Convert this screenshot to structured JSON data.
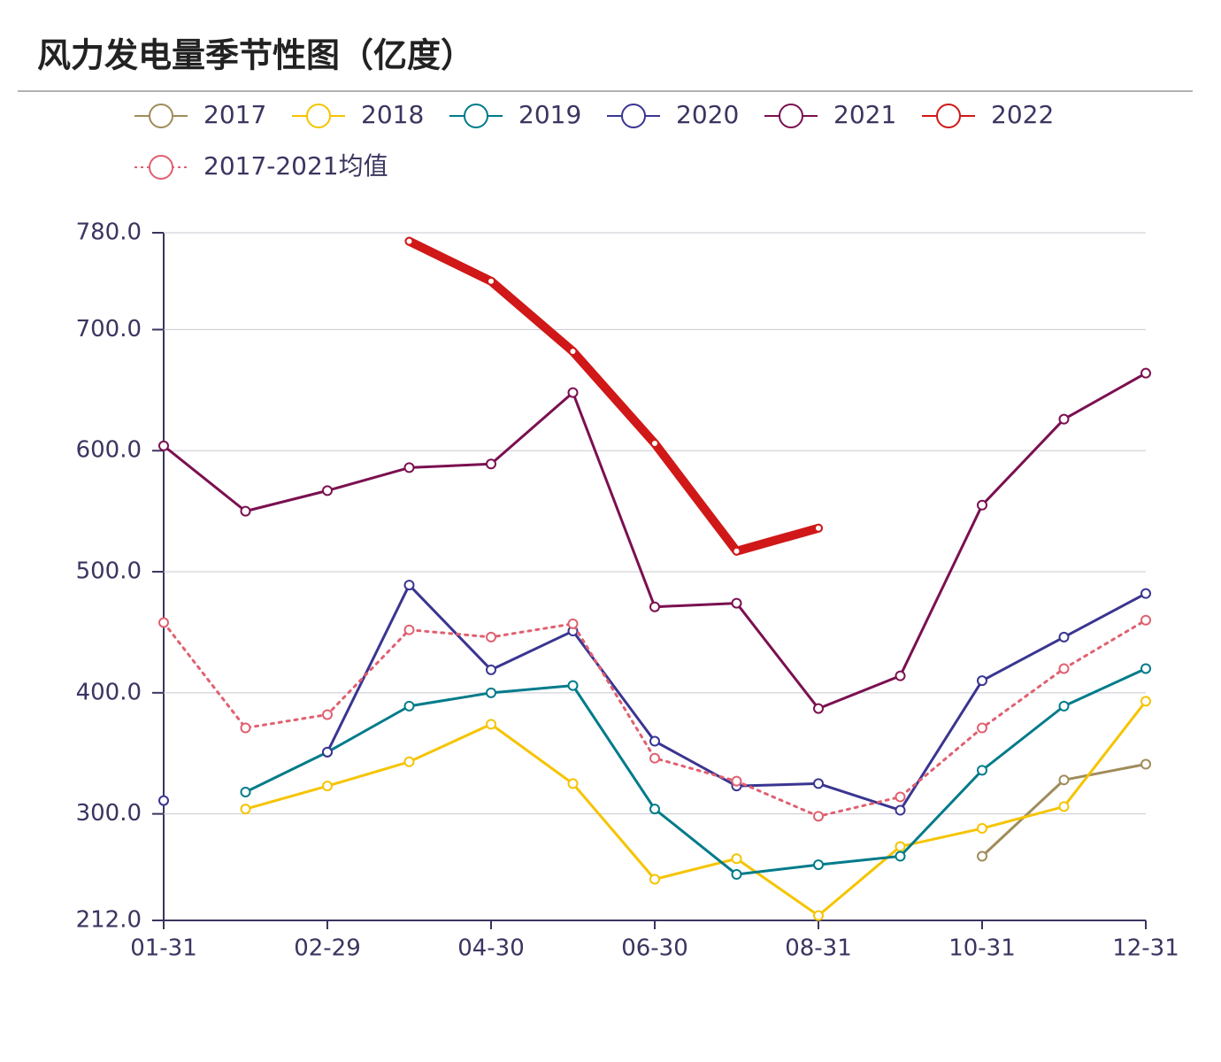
{
  "chart_data": {
    "type": "line",
    "title": "风力发电量季节性图（亿度）",
    "categories": [
      "01-31",
      null,
      "02-29",
      null,
      "04-30",
      null,
      "06-30",
      null,
      "08-31",
      null,
      "10-31",
      null,
      "12-31"
    ],
    "ylim": [
      212,
      780
    ],
    "yticks": [
      {
        "value": 212,
        "label": "212.0"
      },
      {
        "value": 300,
        "label": "300.0"
      },
      {
        "value": 400,
        "label": "400.0"
      },
      {
        "value": 500,
        "label": "500.0"
      },
      {
        "value": 600,
        "label": "600.0"
      },
      {
        "value": 700,
        "label": "700.0"
      },
      {
        "value": 780,
        "label": "780.0"
      }
    ],
    "grid": true,
    "series": [
      {
        "name": "2017",
        "color": "#a08c5a",
        "values": [
          null,
          null,
          null,
          null,
          null,
          null,
          null,
          null,
          null,
          null,
          265,
          328,
          341
        ]
      },
      {
        "name": "2018",
        "color": "#f5c400",
        "values": [
          null,
          304,
          323,
          343,
          374,
          325,
          246,
          263,
          216,
          273,
          288,
          306,
          393
        ]
      },
      {
        "name": "2019",
        "color": "#007b8a",
        "values": [
          null,
          318,
          351,
          389,
          400,
          406,
          304,
          250,
          258,
          265,
          336,
          389,
          420
        ]
      },
      {
        "name": "2020",
        "color": "#3a3591",
        "values": [
          311,
          null,
          351,
          489,
          419,
          451,
          360,
          323,
          325,
          303,
          410,
          446,
          482
        ]
      },
      {
        "name": "2021",
        "color": "#7b1050",
        "values": [
          604,
          550,
          567,
          586,
          589,
          648,
          471,
          474,
          387,
          414,
          555,
          626,
          664
        ]
      },
      {
        "name": "2022",
        "color": "#d01818",
        "values": [
          null,
          null,
          null,
          773,
          740,
          682,
          606,
          517,
          536,
          null,
          null,
          null,
          null
        ]
      },
      {
        "name": "2017-2021均值",
        "color": "#e06070",
        "dashed": true,
        "values": [
          458,
          371,
          382,
          452,
          446,
          457,
          346,
          327,
          298,
          314,
          371,
          420,
          460
        ]
      }
    ]
  }
}
